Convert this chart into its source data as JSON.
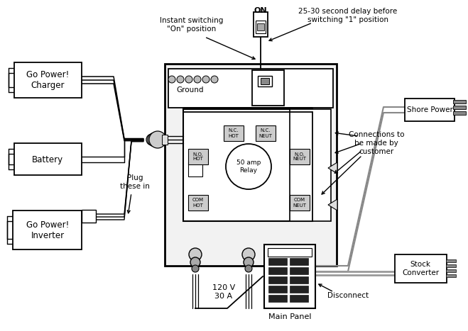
{
  "bg_color": "#ffffff",
  "labels": {
    "go_power_charger": "Go Power!\nCharger",
    "battery": "Battery",
    "go_power_inverter": "Go Power!\nInverter",
    "ground": "Ground",
    "plug_these_in": "Plug\nthese in",
    "instant_switching": "Instant switching\n\"On\" position",
    "delay_switching": "25-30 second delay before\nswitching \"1\" position",
    "connections": "Connections to\nbe made by\ncustomer",
    "shore_power": "Shore Power",
    "stock_converter": "Stock\nConverter",
    "disconnect": "Disconnect",
    "main_panel": "Main Panel",
    "voltage": "120 V\n30 A",
    "on_label": "ON",
    "relay_label": "50 amp\nRelay",
    "nc_hot": "N.C.\nHOT",
    "nc_neut": "N.C.\nNEUT",
    "no_hot": "N.O.\nHOT",
    "no_neut": "N.O.\nNEUT",
    "com_hot": "COM\nHOT",
    "com_neut": "COM\nNEUT"
  }
}
